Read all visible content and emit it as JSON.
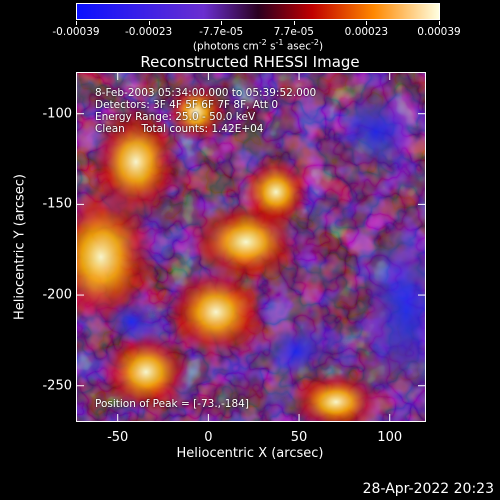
{
  "colorbar": {
    "tick_labels": [
      "-0.00039",
      "-0.00023",
      "-7.7e-05",
      "7.7e-05",
      "0.00023",
      "0.00039"
    ],
    "units_html": "(photons cm<sup>-2</sup> s<sup>-1</sup> asec<sup>-2</sup>)"
  },
  "chart_data": {
    "type": "heatmap",
    "title": "Reconstructed RHESSI Image",
    "xlabel": "Heliocentric X (arcsec)",
    "ylabel": "Heliocentric Y (arcsec)",
    "xlim": [
      -73,
      120
    ],
    "ylim": [
      -270,
      -77
    ],
    "xticks": [
      -50,
      0,
      50,
      100
    ],
    "yticks": [
      -100,
      -150,
      -200,
      -250
    ],
    "value_range": [
      -0.00039,
      0.00039
    ],
    "peak": [
      -73,
      -184
    ],
    "grid": false,
    "annotations": [
      "8-Feb-2003 05:34:00.000 to 05:39:52.000",
      "Detectors: 3F 4F 5F 6F 7F 8F, Att 0",
      "Energy Range: 25.0 - 50.0 keV",
      "Clean     Total counts: 1.42E+04"
    ],
    "peak_label": "Position of Peak = [-73.,-184]"
  },
  "footer": {
    "date": "28-Apr-2022 20:23"
  }
}
